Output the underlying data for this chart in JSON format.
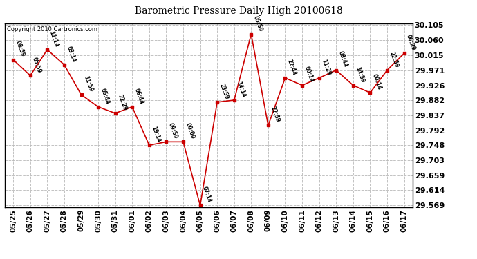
{
  "title": "Barometric Pressure Daily High 20100618",
  "copyright": "Copyright 2010 Cartronics.com",
  "x_labels": [
    "05/25",
    "05/26",
    "05/27",
    "05/28",
    "05/29",
    "05/30",
    "05/31",
    "06/01",
    "06/02",
    "06/03",
    "06/04",
    "06/05",
    "06/06",
    "06/07",
    "06/08",
    "06/09",
    "06/10",
    "06/11",
    "06/12",
    "06/13",
    "06/14",
    "06/15",
    "06/16",
    "06/17"
  ],
  "pressures": [
    30.002,
    29.955,
    30.032,
    29.987,
    29.898,
    29.862,
    29.843,
    29.862,
    29.748,
    29.758,
    29.758,
    29.569,
    29.876,
    29.882,
    30.078,
    29.807,
    29.948,
    29.926,
    29.948,
    29.971,
    29.926,
    29.904,
    29.971,
    30.021
  ],
  "point_labels": [
    "08:59",
    "05:59",
    "11:14",
    "03:14",
    "11:59",
    "05:44",
    "22:29",
    "06:44",
    "19:14",
    "09:59",
    "00:00",
    "07:14",
    "23:59",
    "14:14",
    "05:59",
    "22:59",
    "22:44",
    "00:14",
    "11:29",
    "08:44",
    "14:59",
    "00:14",
    "22:59",
    "06:29"
  ],
  "line_color": "#cc0000",
  "marker_color": "#cc0000",
  "bg_color": "#ffffff",
  "grid_color": "#bbbbbb",
  "ylim_min": 29.569,
  "ylim_max": 30.105,
  "yticks": [
    29.569,
    29.614,
    29.659,
    29.703,
    29.748,
    29.792,
    29.837,
    29.882,
    29.926,
    29.971,
    30.015,
    30.06,
    30.105
  ]
}
